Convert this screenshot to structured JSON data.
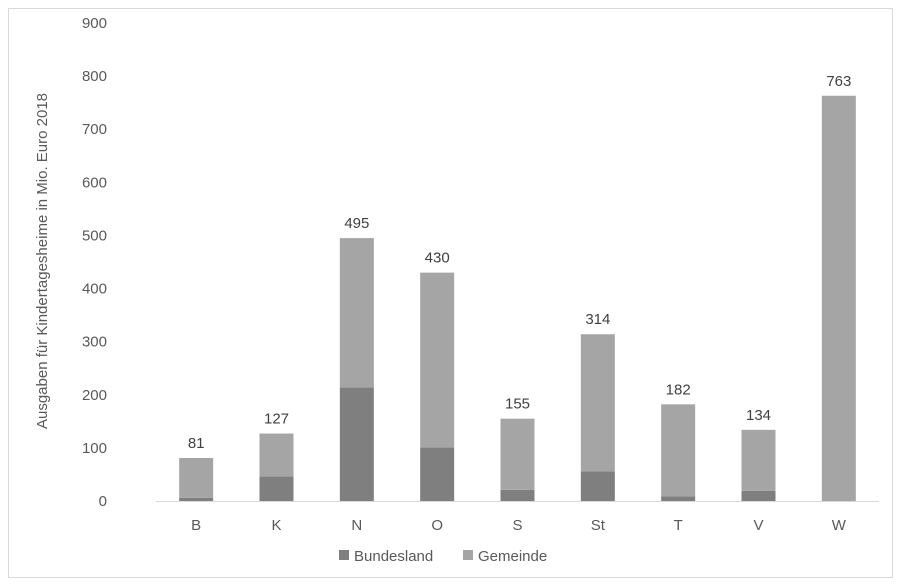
{
  "chart_data": {
    "type": "bar",
    "stacked": true,
    "title": "",
    "xlabel": "",
    "ylabel": "Ausgaben für Kindertagesheime in Mio. Euro 2018",
    "ylim": [
      0,
      900
    ],
    "yticks": [
      0,
      100,
      200,
      300,
      400,
      500,
      600,
      700,
      800,
      900
    ],
    "grid": false,
    "legend_position": "bottom",
    "categories": [
      "B",
      "K",
      "N",
      "O",
      "S",
      "St",
      "T",
      "V",
      "W"
    ],
    "series": [
      {
        "name": "Bundesland",
        "color": "#7f7f7f",
        "values": [
          6,
          46,
          214,
          101,
          21,
          56,
          9,
          19,
          0
        ]
      },
      {
        "name": "Gemeinde",
        "color": "#a5a5a5",
        "values": [
          75,
          81,
          281,
          329,
          134,
          258,
          173,
          115,
          763
        ]
      }
    ],
    "totals": [
      "81",
      "127",
      "495",
      "430",
      "155",
      "314",
      "182",
      "134",
      "763"
    ]
  }
}
